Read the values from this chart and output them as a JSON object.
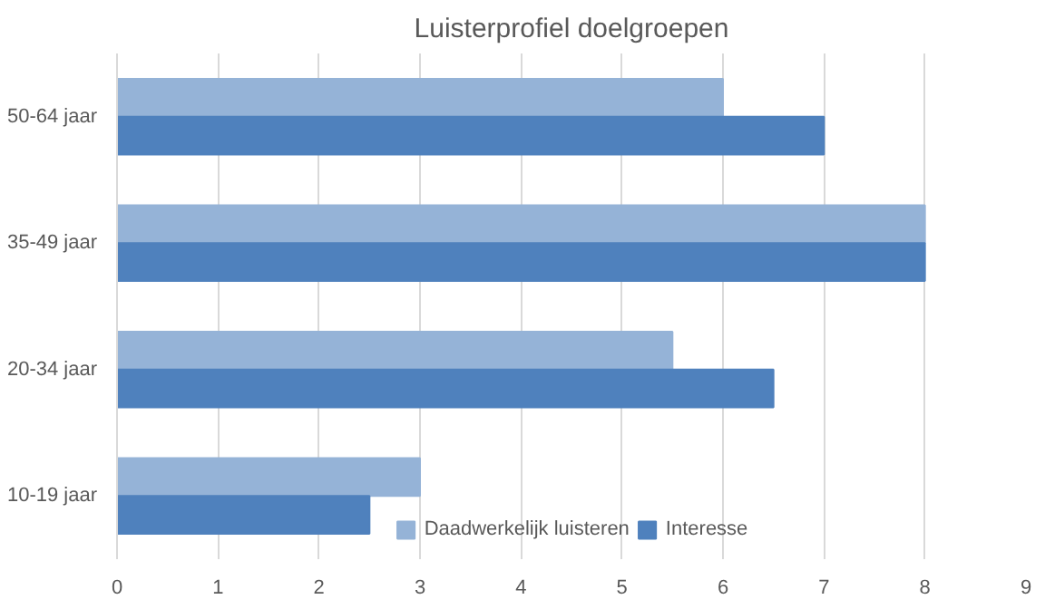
{
  "chart_data": {
    "type": "bar",
    "orientation": "horizontal",
    "title": "Luisterprofiel doelgroepen",
    "categories": [
      "50-64 jaar",
      "35-49 jaar",
      "20-34 jaar",
      "10-19 jaar"
    ],
    "series": [
      {
        "name": "Daadwerkelijk luisteren",
        "color": "#95b3d7",
        "values": [
          6,
          8,
          5.5,
          3
        ]
      },
      {
        "name": "Interesse",
        "color": "#4f81bd",
        "values": [
          7,
          8,
          6.5,
          2.5
        ]
      }
    ],
    "xlim": [
      0,
      9
    ],
    "xticks": [
      0,
      1,
      2,
      3,
      4,
      5,
      6,
      7,
      8,
      9
    ],
    "grid": "x",
    "legend": "bottom"
  }
}
